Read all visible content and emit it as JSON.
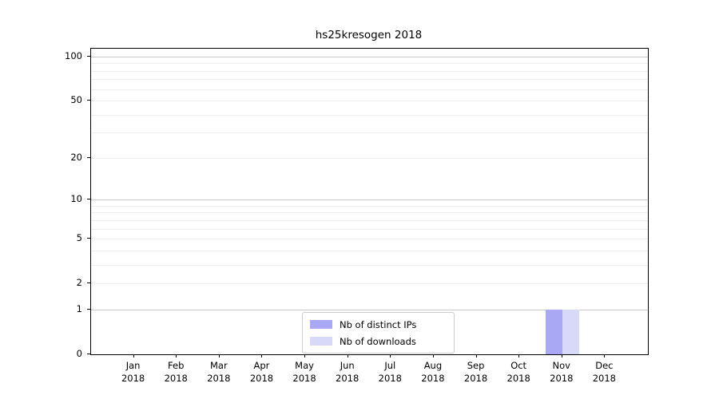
{
  "chart_data": {
    "type": "bar",
    "title": "hs25kresogen 2018",
    "categories": [
      "Jan 2018",
      "Feb 2018",
      "Mar 2018",
      "Apr 2018",
      "May 2018",
      "Jun 2018",
      "Jul 2018",
      "Aug 2018",
      "Sep 2018",
      "Oct 2018",
      "Nov 2018",
      "Dec 2018"
    ],
    "series": [
      {
        "name": "Nb of distinct IPs",
        "color": "#a8a8f5",
        "values": [
          0,
          0,
          0,
          0,
          0,
          0,
          0,
          0,
          0,
          0,
          1,
          0
        ]
      },
      {
        "name": "Nb of downloads",
        "color": "#d8d8f8",
        "values": [
          0,
          0,
          0,
          0,
          0,
          0,
          0,
          0,
          0,
          0,
          1,
          0
        ]
      }
    ],
    "yscale": "log1p",
    "ylim": [
      0,
      115
    ],
    "yticks": [
      0,
      1,
      2,
      5,
      10,
      20,
      50,
      100
    ],
    "major_gridlines": [
      1,
      10,
      100
    ],
    "minor_gridlines": [
      2,
      3,
      4,
      5,
      6,
      7,
      8,
      9,
      20,
      30,
      40,
      50,
      60,
      70,
      80,
      90
    ],
    "grid": "on",
    "legend_position": "lower center",
    "colors": {
      "grid_major": "#c6c6c6",
      "grid_minor": "#ededed",
      "spine": "#000000",
      "legend_border": "#cccccc",
      "text": "#000000"
    }
  }
}
